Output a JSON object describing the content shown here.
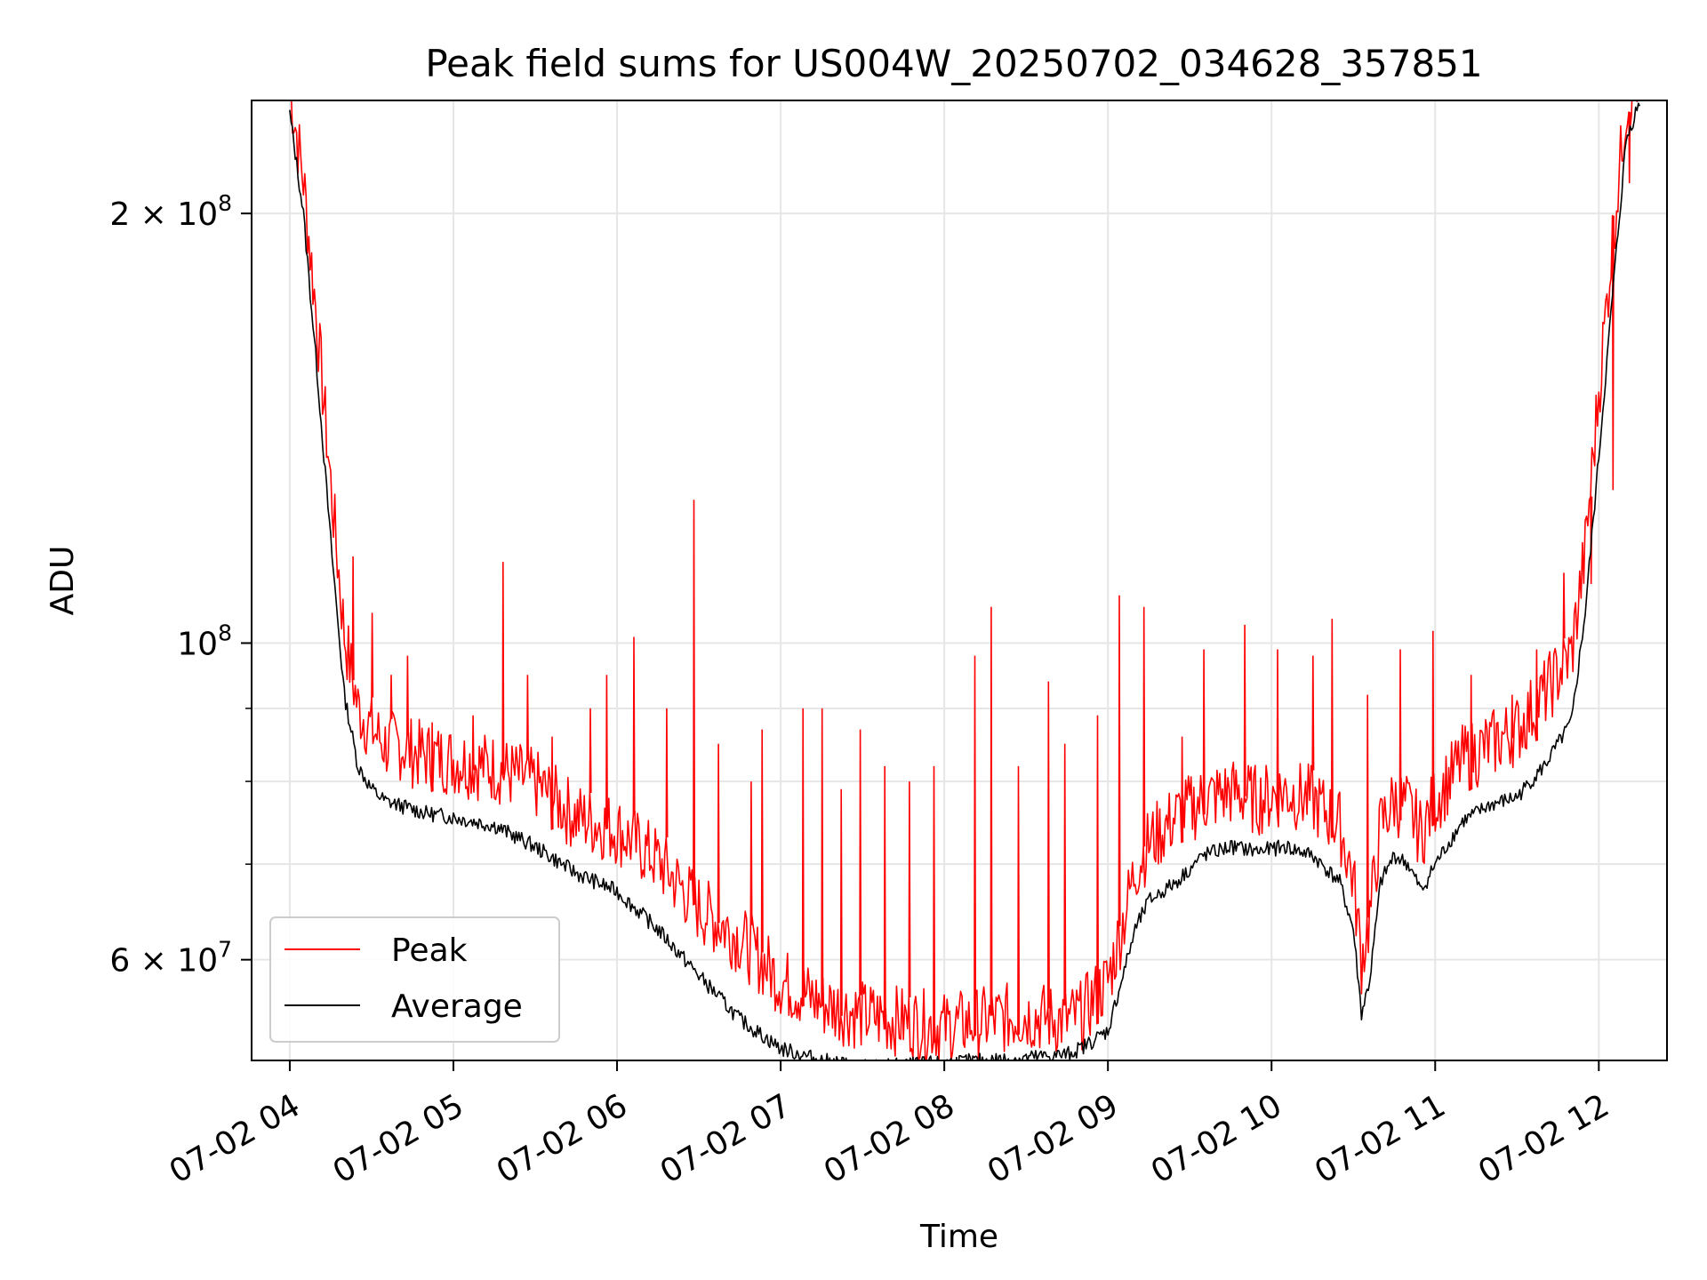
{
  "chart_data": {
    "type": "line",
    "title": "Peak field sums for US004W_20250702_034628_357851",
    "xlabel": "Time",
    "ylabel": "ADU",
    "yscale": "log",
    "grid": true,
    "legend_placement": "lower-left",
    "xlim": [
      "2025-07-02 03:46",
      "2025-07-02 12:25"
    ],
    "ylim": [
      51000000,
      240000000
    ],
    "x_ticks": [
      "07-02 04",
      "07-02 05",
      "07-02 06",
      "07-02 07",
      "07-02 08",
      "07-02 09",
      "07-02 10",
      "07-02 11",
      "07-02 12"
    ],
    "y_ticks": [
      {
        "value": 200000000,
        "mantissa": "2",
        "base": "10",
        "exp": "8"
      },
      {
        "value": 100000000,
        "mantissa": "",
        "base": "10",
        "exp": "8"
      },
      {
        "value": 60000000,
        "mantissa": "6",
        "base": "10",
        "exp": "7"
      }
    ],
    "y_minor_ticks": [
      90000000,
      80000000,
      70000000,
      50000000
    ],
    "series": [
      {
        "name": "Average",
        "color": "#000000",
        "x": [
          "2025-07-02 04:00",
          "2025-07-02 04:05",
          "2025-07-02 04:10",
          "2025-07-02 04:15",
          "2025-07-02 04:20",
          "2025-07-02 04:25",
          "2025-07-02 04:30",
          "2025-07-02 04:35",
          "2025-07-02 04:40",
          "2025-07-02 04:45",
          "2025-07-02 04:50",
          "2025-07-02 05:00",
          "2025-07-02 05:15",
          "2025-07-02 05:30",
          "2025-07-02 05:45",
          "2025-07-02 06:00",
          "2025-07-02 06:15",
          "2025-07-02 06:30",
          "2025-07-02 06:45",
          "2025-07-02 07:00",
          "2025-07-02 07:15",
          "2025-07-02 07:30",
          "2025-07-02 07:45",
          "2025-07-02 08:00",
          "2025-07-02 08:15",
          "2025-07-02 08:30",
          "2025-07-02 08:45",
          "2025-07-02 08:50",
          "2025-07-02 09:00",
          "2025-07-02 09:05",
          "2025-07-02 09:10",
          "2025-07-02 09:15",
          "2025-07-02 09:25",
          "2025-07-02 09:35",
          "2025-07-02 09:45",
          "2025-07-02 09:55",
          "2025-07-02 10:05",
          "2025-07-02 10:15",
          "2025-07-02 10:25",
          "2025-07-02 10:30",
          "2025-07-02 10:33",
          "2025-07-02 10:36",
          "2025-07-02 10:40",
          "2025-07-02 10:45",
          "2025-07-02 10:50",
          "2025-07-02 10:55",
          "2025-07-02 11:00",
          "2025-07-02 11:10",
          "2025-07-02 11:20",
          "2025-07-02 11:30",
          "2025-07-02 11:40",
          "2025-07-02 11:50",
          "2025-07-02 11:55",
          "2025-07-02 12:00",
          "2025-07-02 12:05",
          "2025-07-02 12:10",
          "2025-07-02 12:15"
        ],
        "values": [
          235000000,
          200000000,
          155000000,
          118000000,
          92000000,
          82000000,
          79000000,
          77500000,
          77000000,
          76500000,
          76000000,
          75500000,
          74500000,
          72000000,
          69000000,
          67000000,
          63000000,
          58500000,
          54500000,
          52000000,
          51000000,
          50500000,
          50600000,
          50800000,
          51000000,
          51200000,
          51500000,
          52000000,
          53500000,
          58000000,
          63000000,
          66000000,
          68000000,
          71000000,
          72000000,
          71500000,
          72000000,
          71000000,
          68000000,
          63000000,
          55000000,
          58000000,
          68000000,
          71000000,
          70000000,
          67000000,
          70000000,
          75000000,
          77000000,
          78000000,
          82000000,
          88000000,
          105000000,
          135000000,
          175000000,
          225000000,
          240000000
        ]
      },
      {
        "name": "Peak",
        "color": "#ff0000",
        "x": [
          "2025-07-02 04:00",
          "2025-07-02 04:05",
          "2025-07-02 04:10",
          "2025-07-02 04:15",
          "2025-07-02 04:20",
          "2025-07-02 04:25",
          "2025-07-02 04:30",
          "2025-07-02 04:35",
          "2025-07-02 04:40",
          "2025-07-02 04:45",
          "2025-07-02 04:50",
          "2025-07-02 05:00",
          "2025-07-02 05:15",
          "2025-07-02 05:30",
          "2025-07-02 05:45",
          "2025-07-02 06:00",
          "2025-07-02 06:15",
          "2025-07-02 06:30",
          "2025-07-02 06:45",
          "2025-07-02 07:00",
          "2025-07-02 07:15",
          "2025-07-02 07:30",
          "2025-07-02 07:45",
          "2025-07-02 08:00",
          "2025-07-02 08:15",
          "2025-07-02 08:30",
          "2025-07-02 08:45",
          "2025-07-02 08:50",
          "2025-07-02 09:00",
          "2025-07-02 09:05",
          "2025-07-02 09:10",
          "2025-07-02 09:15",
          "2025-07-02 09:25",
          "2025-07-02 09:35",
          "2025-07-02 09:45",
          "2025-07-02 09:55",
          "2025-07-02 10:05",
          "2025-07-02 10:15",
          "2025-07-02 10:25",
          "2025-07-02 10:30",
          "2025-07-02 10:33",
          "2025-07-02 10:36",
          "2025-07-02 10:40",
          "2025-07-02 10:45",
          "2025-07-02 10:50",
          "2025-07-02 10:55",
          "2025-07-02 11:00",
          "2025-07-02 11:10",
          "2025-07-02 11:20",
          "2025-07-02 11:30",
          "2025-07-02 11:40",
          "2025-07-02 11:50",
          "2025-07-02 11:55",
          "2025-07-02 12:00",
          "2025-07-02 12:05",
          "2025-07-02 12:10",
          "2025-07-02 12:15"
        ],
        "values": [
          237000000,
          204000000,
          162000000,
          125000000,
          98000000,
          87000000,
          84000000,
          82000000,
          82000000,
          81000000,
          80500000,
          80000000,
          79000000,
          77000000,
          73000000,
          71500000,
          68000000,
          63000000,
          60000000,
          56000000,
          54000000,
          53000000,
          52500000,
          52000000,
          52500000,
          53000000,
          52500000,
          53000000,
          56000000,
          61000000,
          67000000,
          70000000,
          73000000,
          75000000,
          76000000,
          75000000,
          76000000,
          75000000,
          72000000,
          66000000,
          58000000,
          62000000,
          72000000,
          75000000,
          74000000,
          71000000,
          75000000,
          80000000,
          82000000,
          84000000,
          89000000,
          95000000,
          112000000,
          145000000,
          185000000,
          230000000,
          242000000
        ]
      }
    ],
    "peak_spikes": {
      "x": [
        "2025-07-02 04:23",
        "2025-07-02 04:30",
        "2025-07-02 04:37",
        "2025-07-02 04:43",
        "2025-07-02 04:52",
        "2025-07-02 05:07",
        "2025-07-02 05:18",
        "2025-07-02 05:27",
        "2025-07-02 05:36",
        "2025-07-02 05:50",
        "2025-07-02 05:56",
        "2025-07-02 06:06",
        "2025-07-02 06:18",
        "2025-07-02 06:28",
        "2025-07-02 06:37",
        "2025-07-02 06:49",
        "2025-07-02 06:53",
        "2025-07-02 07:08",
        "2025-07-02 07:15",
        "2025-07-02 07:22",
        "2025-07-02 07:29",
        "2025-07-02 07:38",
        "2025-07-02 07:47",
        "2025-07-02 07:56",
        "2025-07-02 08:11",
        "2025-07-02 08:17",
        "2025-07-02 08:27",
        "2025-07-02 08:38",
        "2025-07-02 08:44",
        "2025-07-02 08:56",
        "2025-07-02 09:04",
        "2025-07-02 09:13",
        "2025-07-02 09:27",
        "2025-07-02 09:35",
        "2025-07-02 09:50",
        "2025-07-02 10:02",
        "2025-07-02 10:15",
        "2025-07-02 10:22",
        "2025-07-02 10:35",
        "2025-07-02 10:47",
        "2025-07-02 10:59",
        "2025-07-02 11:13",
        "2025-07-02 11:28",
        "2025-07-02 11:37",
        "2025-07-02 11:47",
        "2025-07-02 11:57",
        "2025-07-02 12:05",
        "2025-07-02 12:11"
      ],
      "values": [
        115000000,
        105000000,
        95000000,
        98000000,
        88000000,
        89000000,
        114000000,
        95000000,
        86000000,
        90000000,
        95000000,
        101000000,
        90000000,
        126000000,
        85000000,
        80000000,
        87000000,
        90000000,
        90000000,
        79000000,
        87000000,
        82000000,
        80000000,
        82000000,
        98000000,
        106000000,
        82000000,
        94000000,
        85000000,
        89000000,
        108000000,
        106000000,
        86000000,
        99000000,
        103000000,
        99000000,
        98000000,
        104000000,
        92000000,
        99000000,
        102000000,
        95000000,
        92000000,
        99000000,
        112000000,
        110000000,
        128000000,
        210000000
      ]
    }
  },
  "legend": [
    {
      "label": "Peak",
      "color": "#ff0000"
    },
    {
      "label": "Average",
      "color": "#000000"
    }
  ]
}
